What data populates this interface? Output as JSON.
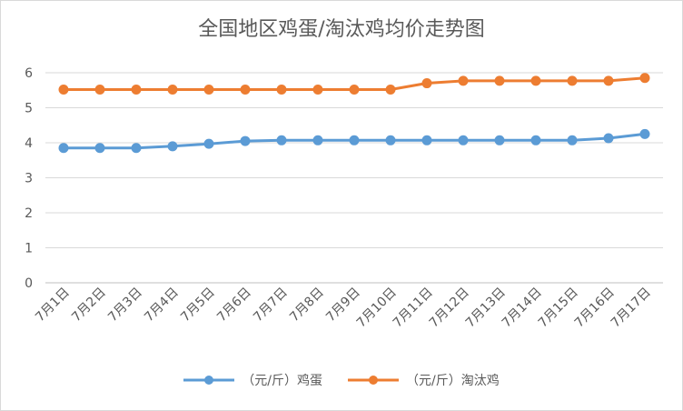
{
  "chart_data": {
    "type": "line",
    "title": "全国地区鸡蛋/淘汰鸡均价走势图",
    "categories": [
      "7月1日",
      "7月2日",
      "7月3日",
      "7月4日",
      "7月5日",
      "7月6日",
      "7月7日",
      "7月8日",
      "7月9日",
      "7月10日",
      "7月11日",
      "7月12日",
      "7月13日",
      "7月14日",
      "7月15日",
      "7月16日",
      "7月17日"
    ],
    "ylim": [
      0,
      6
    ],
    "yticks": [
      0,
      1,
      2,
      3,
      4,
      5,
      6
    ],
    "grid": true,
    "legend_position": "bottom",
    "series": [
      {
        "name": "（元/斤）鸡蛋",
        "color": "#5B9BD5",
        "values": [
          3.85,
          3.85,
          3.85,
          3.9,
          3.97,
          4.05,
          4.07,
          4.07,
          4.07,
          4.07,
          4.07,
          4.07,
          4.07,
          4.07,
          4.07,
          4.13,
          4.25
        ]
      },
      {
        "name": "（元/斤）淘汰鸡",
        "color": "#ED7D31",
        "values": [
          5.52,
          5.52,
          5.52,
          5.52,
          5.52,
          5.52,
          5.52,
          5.52,
          5.52,
          5.52,
          5.7,
          5.77,
          5.77,
          5.77,
          5.77,
          5.77,
          5.85
        ]
      }
    ]
  }
}
